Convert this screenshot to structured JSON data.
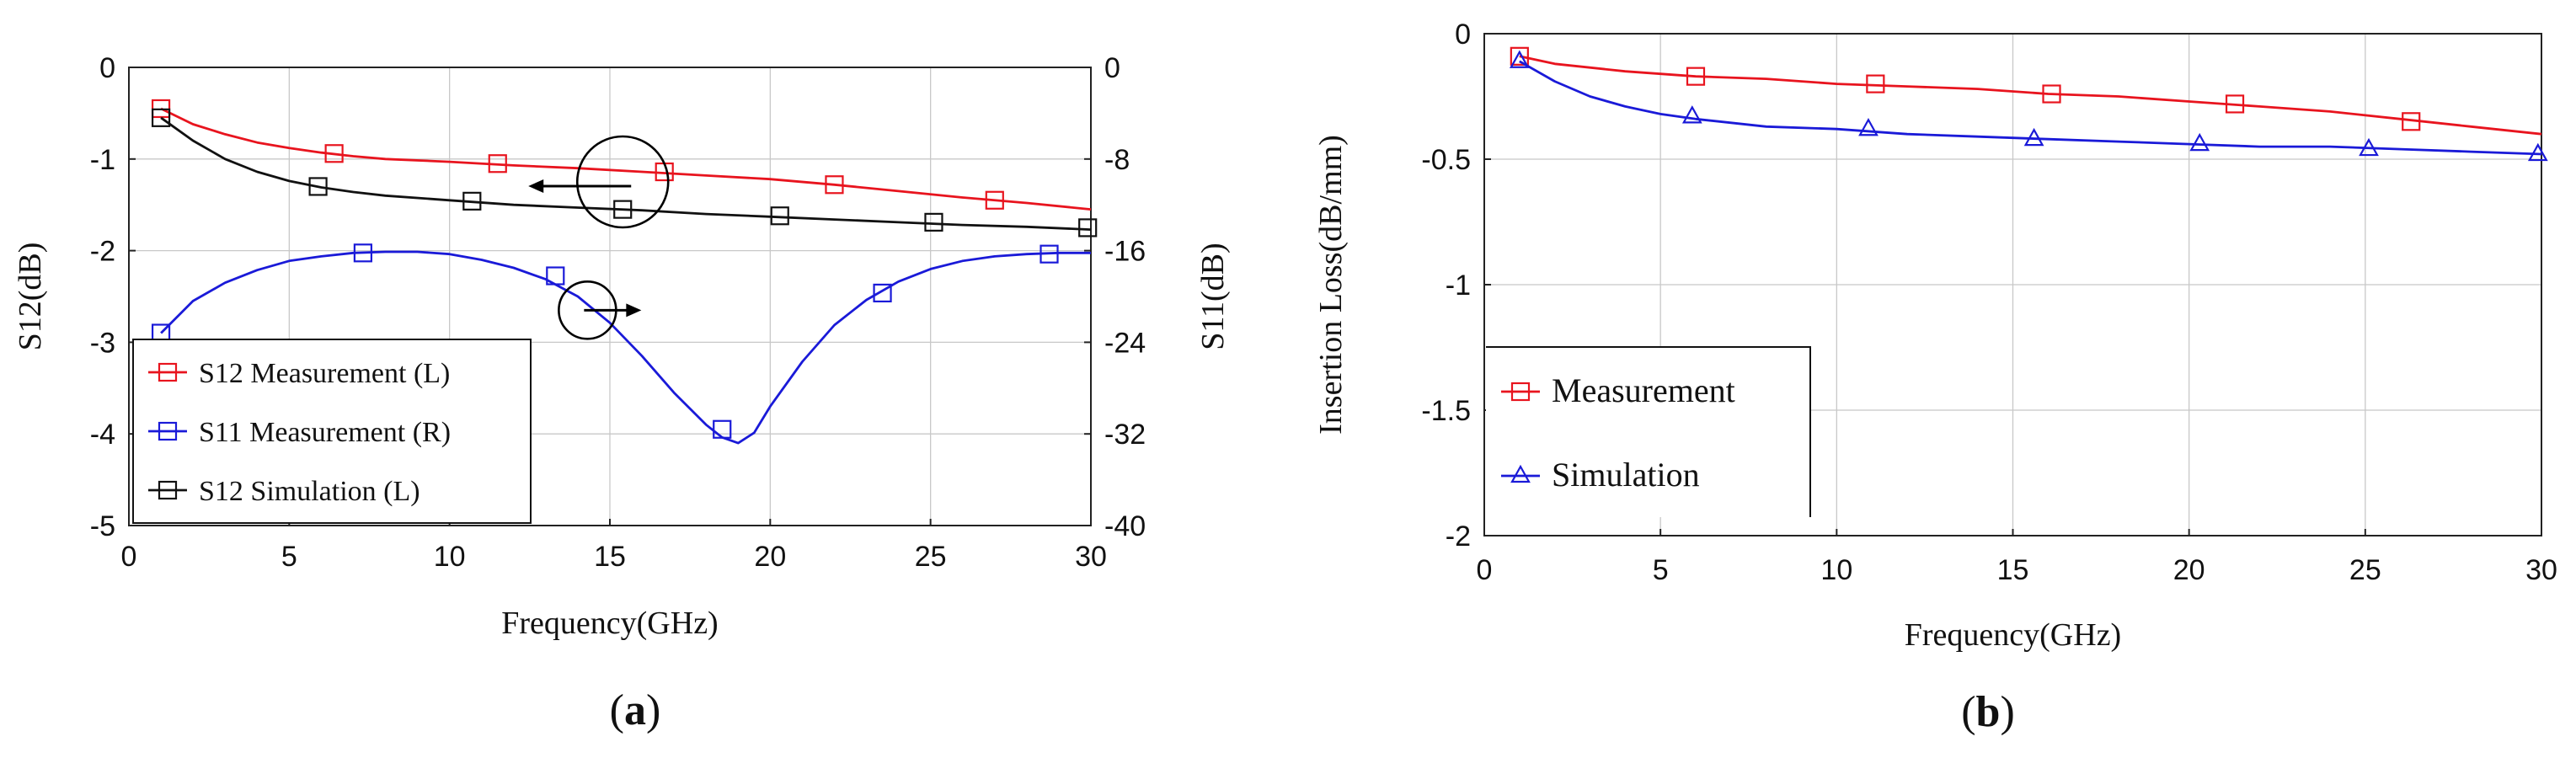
{
  "colors": {
    "measurement": "#e8141e",
    "s11": "#1a1ad8",
    "simulation": "#111111",
    "grid": "#c8c8c8",
    "axis": "#222222"
  },
  "chart_data": [
    {
      "type": "line",
      "panel_label": "a",
      "title": "",
      "xlabel": "Frequency(GHz)",
      "ylabel": "S12(dB)",
      "y2label": "S11(dB)",
      "xlim": [
        0,
        30
      ],
      "ylim": [
        -5,
        0
      ],
      "y2lim": [
        -40,
        0
      ],
      "xticks": [
        "0",
        "5",
        "10",
        "15",
        "20",
        "25",
        "30"
      ],
      "yticks": [
        "0",
        "-1",
        "-2",
        "-3",
        "-4",
        "-5"
      ],
      "y2ticks": [
        "0",
        "-8",
        "-16",
        "-24",
        "-32",
        "-40"
      ],
      "grid": true,
      "legend_position": "bottom-left",
      "series": [
        {
          "name": "S12 Measurement (L)",
          "axis": "left",
          "color": "#e8141e",
          "marker": "square",
          "x": [
            1,
            2,
            3,
            4,
            5,
            6,
            7,
            8,
            10,
            12,
            14,
            16,
            18,
            20,
            22,
            24,
            26,
            28,
            30
          ],
          "y": [
            -0.45,
            -0.62,
            -0.73,
            -0.82,
            -0.88,
            -0.93,
            -0.97,
            -1.0,
            -1.03,
            -1.07,
            -1.1,
            -1.14,
            -1.18,
            -1.22,
            -1.28,
            -1.35,
            -1.42,
            -1.48,
            -1.55
          ],
          "markers_x": [
            1,
            6.4,
            11.5,
            16.7,
            22,
            27
          ],
          "markers_y": [
            -0.45,
            -0.94,
            -1.05,
            -1.14,
            -1.28,
            -1.45
          ]
        },
        {
          "name": "S11 Measurement (R)",
          "axis": "right",
          "color": "#1a1ad8",
          "marker": "square",
          "x": [
            1,
            2,
            3,
            4,
            5,
            6,
            7,
            8,
            9,
            10,
            11,
            12,
            13,
            14,
            15,
            16,
            17,
            18,
            18.5,
            19,
            19.5,
            20,
            21,
            22,
            23,
            24,
            25,
            26,
            27,
            28,
            29,
            30
          ],
          "y": [
            -23.2,
            -20.4,
            -18.8,
            -17.7,
            -16.9,
            -16.5,
            -16.2,
            -16.1,
            -16.1,
            -16.3,
            -16.8,
            -17.5,
            -18.5,
            -20.0,
            -22.3,
            -25.2,
            -28.4,
            -31.2,
            -32.3,
            -32.8,
            -31.9,
            -29.6,
            -25.7,
            -22.5,
            -20.3,
            -18.7,
            -17.6,
            -16.9,
            -16.5,
            -16.3,
            -16.2,
            -16.2
          ],
          "markers_x": [
            1,
            7.3,
            13.3,
            18.5,
            23.5,
            28.7
          ],
          "markers_y": [
            -23.2,
            -16.2,
            -18.2,
            -31.6,
            -19.7,
            -16.3
          ]
        },
        {
          "name": "S12 Simulation (L)",
          "axis": "left",
          "color": "#111111",
          "marker": "square",
          "x": [
            1,
            2,
            3,
            4,
            5,
            6,
            7,
            8,
            10,
            12,
            14,
            16,
            18,
            20,
            22,
            24,
            26,
            28,
            30
          ],
          "y": [
            -0.55,
            -0.8,
            -1.0,
            -1.14,
            -1.24,
            -1.31,
            -1.36,
            -1.4,
            -1.45,
            -1.5,
            -1.53,
            -1.56,
            -1.6,
            -1.63,
            -1.66,
            -1.69,
            -1.72,
            -1.74,
            -1.77
          ],
          "markers_x": [
            1,
            5.9,
            10.7,
            15.4,
            20.3,
            25.1,
            29.9
          ],
          "markers_y": [
            -0.55,
            -1.3,
            -1.46,
            -1.55,
            -1.62,
            -1.69,
            -1.75
          ]
        }
      ],
      "annotations": [
        {
          "type": "circle-arrow",
          "x": 15.4,
          "y": -1.25,
          "direction": "left"
        },
        {
          "type": "circle-arrow",
          "x": 14.3,
          "y": -2.65,
          "direction": "right"
        }
      ]
    },
    {
      "type": "line",
      "panel_label": "b",
      "title": "",
      "xlabel": "Frequency(GHz)",
      "ylabel": "Insertion Loss(dB/mm)",
      "xlim": [
        0,
        30
      ],
      "ylim": [
        -2,
        0
      ],
      "xticks": [
        "0",
        "5",
        "10",
        "15",
        "20",
        "25",
        "30"
      ],
      "yticks": [
        "0",
        "-0.5",
        "-1",
        "-1.5",
        "-2"
      ],
      "grid": true,
      "legend_position": "bottom-left",
      "series": [
        {
          "name": "Measurement",
          "color": "#e8141e",
          "marker": "square",
          "x": [
            1,
            2,
            4,
            6,
            8,
            10,
            12,
            14,
            16,
            18,
            20,
            22,
            24,
            26,
            28,
            30
          ],
          "y": [
            -0.09,
            -0.12,
            -0.15,
            -0.17,
            -0.18,
            -0.2,
            -0.21,
            -0.22,
            -0.24,
            -0.25,
            -0.27,
            -0.29,
            -0.31,
            -0.34,
            -0.37,
            -0.4
          ],
          "markers_x": [
            1,
            6,
            11.1,
            16.1,
            21.3,
            26.3
          ],
          "markers_y": [
            -0.09,
            -0.17,
            -0.2,
            -0.24,
            -0.28,
            -0.35
          ]
        },
        {
          "name": "Simulation",
          "color": "#1a1ad8",
          "marker": "triangle",
          "x": [
            1,
            2,
            3,
            4,
            5,
            6,
            8,
            10,
            12,
            14,
            16,
            18,
            20,
            22,
            24,
            26,
            28,
            30
          ],
          "y": [
            -0.11,
            -0.19,
            -0.25,
            -0.29,
            -0.32,
            -0.34,
            -0.37,
            -0.38,
            -0.4,
            -0.41,
            -0.42,
            -0.43,
            -0.44,
            -0.45,
            -0.45,
            -0.46,
            -0.47,
            -0.48
          ],
          "markers_x": [
            1,
            5.9,
            10.9,
            15.6,
            20.3,
            25.1,
            29.9
          ],
          "markers_y": [
            -0.11,
            -0.33,
            -0.38,
            -0.42,
            -0.44,
            -0.46,
            -0.48
          ]
        }
      ]
    }
  ]
}
